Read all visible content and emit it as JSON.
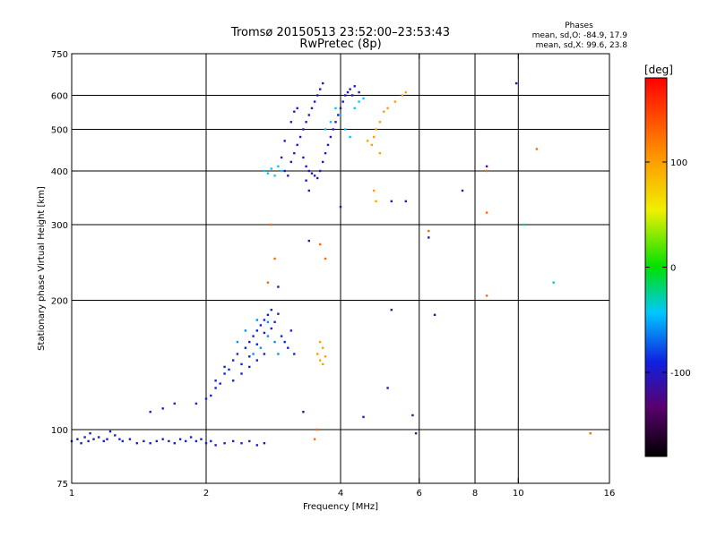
{
  "chart_data": {
    "type": "scatter",
    "title": "Tromsø 20150513 23:52:00–23:53:43",
    "subtitle": "RwPretec (8p)",
    "xlabel": "Frequency [MHz]",
    "ylabel": "Stationary phase Virtual Height [km]",
    "x_scale": "log",
    "y_scale": "log",
    "xlim": [
      1,
      16
    ],
    "ylim": [
      75,
      750
    ],
    "x_ticks": [
      1,
      2,
      4,
      6,
      8,
      10,
      16
    ],
    "x_ticklabels": [
      "1",
      "2",
      "4",
      "6",
      "8",
      "10",
      "16"
    ],
    "y_ticks": [
      75,
      100,
      200,
      300,
      400,
      500,
      600,
      750
    ],
    "y_ticklabels": [
      "75",
      "100",
      "200",
      "300",
      "400",
      "500",
      "600",
      "750"
    ],
    "x_gridlines": [
      2,
      4,
      6,
      8,
      10
    ],
    "y_gridlines": [
      100,
      200,
      300,
      400,
      500,
      600
    ],
    "grid": true,
    "phase_stats": {
      "title": "Phases",
      "line_o": "mean, sd,O:  -84.9,  17.9",
      "line_x": "mean, sd,X:   99.6,  23.8"
    },
    "colorbar": {
      "label": "[deg]",
      "range": [
        -180,
        180
      ],
      "ticks": [
        -100,
        0,
        100
      ],
      "ticklabels": [
        "-100",
        "0",
        "100"
      ],
      "colormap": "rainbow: black-purple-blue-cyan-green-yellow-orange-red"
    },
    "series": [
      {
        "phase_deg": -95,
        "points": [
          [
            1.0,
            94
          ],
          [
            1.03,
            95
          ],
          [
            1.05,
            93
          ],
          [
            1.07,
            96
          ],
          [
            1.09,
            94
          ],
          [
            1.1,
            98
          ],
          [
            1.12,
            95
          ],
          [
            1.15,
            96
          ],
          [
            1.18,
            94
          ],
          [
            1.2,
            95
          ],
          [
            1.22,
            99
          ],
          [
            1.25,
            97
          ],
          [
            1.28,
            95
          ],
          [
            1.3,
            94
          ],
          [
            1.35,
            95
          ],
          [
            1.4,
            93
          ],
          [
            1.45,
            94
          ],
          [
            1.5,
            93
          ],
          [
            1.55,
            94
          ],
          [
            1.6,
            95
          ],
          [
            1.65,
            94
          ],
          [
            1.7,
            93
          ],
          [
            1.75,
            95
          ],
          [
            1.8,
            94
          ],
          [
            1.85,
            96
          ],
          [
            1.9,
            94
          ],
          [
            1.95,
            95
          ],
          [
            2.0,
            93
          ],
          [
            2.05,
            94
          ],
          [
            2.1,
            92
          ],
          [
            2.2,
            93
          ],
          [
            2.3,
            94
          ],
          [
            2.4,
            93
          ],
          [
            2.5,
            94
          ],
          [
            2.6,
            92
          ],
          [
            2.7,
            93
          ]
        ]
      },
      {
        "phase_deg": -90,
        "points": [
          [
            1.5,
            110
          ],
          [
            1.6,
            112
          ],
          [
            1.7,
            115
          ],
          [
            1.9,
            115
          ],
          [
            2.0,
            118
          ],
          [
            2.05,
            120
          ],
          [
            2.1,
            125
          ],
          [
            2.1,
            130
          ],
          [
            2.15,
            128
          ],
          [
            2.2,
            135
          ],
          [
            2.2,
            140
          ],
          [
            2.25,
            138
          ],
          [
            2.3,
            145
          ],
          [
            2.35,
            150
          ],
          [
            2.4,
            142
          ],
          [
            2.45,
            155
          ],
          [
            2.5,
            160
          ],
          [
            2.5,
            148
          ],
          [
            2.55,
            165
          ],
          [
            2.6,
            158
          ],
          [
            2.6,
            170
          ],
          [
            2.65,
            175
          ],
          [
            2.7,
            168
          ],
          [
            2.7,
            180
          ],
          [
            2.75,
            185
          ],
          [
            2.8,
            172
          ],
          [
            2.8,
            190
          ],
          [
            2.85,
            178
          ],
          [
            2.9,
            186
          ],
          [
            2.95,
            165
          ],
          [
            3.0,
            160
          ],
          [
            3.05,
            155
          ],
          [
            3.1,
            170
          ],
          [
            3.15,
            150
          ],
          [
            2.3,
            130
          ],
          [
            2.4,
            135
          ],
          [
            2.5,
            140
          ],
          [
            2.6,
            145
          ],
          [
            2.7,
            150
          ]
        ]
      },
      {
        "phase_deg": -60,
        "points": [
          [
            2.35,
            160
          ],
          [
            2.45,
            170
          ],
          [
            2.55,
            150
          ],
          [
            2.65,
            155
          ],
          [
            2.75,
            165
          ],
          [
            2.85,
            160
          ],
          [
            2.9,
            150
          ],
          [
            2.6,
            180
          ],
          [
            2.75,
            178
          ]
        ]
      },
      {
        "phase_deg": -100,
        "points": [
          [
            3.0,
            400
          ],
          [
            3.05,
            390
          ],
          [
            3.1,
            420
          ],
          [
            3.15,
            440
          ],
          [
            3.2,
            460
          ],
          [
            3.25,
            480
          ],
          [
            3.3,
            500
          ],
          [
            3.35,
            520
          ],
          [
            3.4,
            540
          ],
          [
            3.45,
            560
          ],
          [
            3.5,
            580
          ],
          [
            3.55,
            600
          ],
          [
            3.6,
            620
          ],
          [
            3.65,
            640
          ],
          [
            3.1,
            520
          ],
          [
            3.15,
            550
          ],
          [
            3.2,
            560
          ],
          [
            3.3,
            430
          ],
          [
            3.35,
            410
          ],
          [
            3.4,
            400
          ],
          [
            3.45,
            395
          ],
          [
            3.5,
            390
          ],
          [
            3.55,
            385
          ],
          [
            3.6,
            400
          ],
          [
            3.65,
            420
          ],
          [
            3.7,
            440
          ],
          [
            3.75,
            460
          ],
          [
            3.8,
            480
          ],
          [
            3.85,
            500
          ],
          [
            3.9,
            520
          ],
          [
            3.95,
            540
          ],
          [
            4.0,
            560
          ],
          [
            4.05,
            580
          ],
          [
            4.1,
            600
          ],
          [
            4.15,
            610
          ],
          [
            4.2,
            620
          ],
          [
            4.25,
            600
          ],
          [
            4.3,
            630
          ],
          [
            4.4,
            610
          ],
          [
            3.35,
            380
          ],
          [
            3.4,
            360
          ],
          [
            3.0,
            470
          ],
          [
            2.95,
            430
          ]
        ]
      },
      {
        "phase_deg": -45,
        "points": [
          [
            2.7,
            400
          ],
          [
            2.75,
            395
          ],
          [
            2.8,
            405
          ],
          [
            2.85,
            390
          ],
          [
            2.9,
            410
          ],
          [
            2.95,
            400
          ],
          [
            3.7,
            500
          ],
          [
            3.8,
            520
          ],
          [
            3.9,
            560
          ],
          [
            4.0,
            540
          ],
          [
            4.1,
            500
          ],
          [
            4.2,
            480
          ],
          [
            4.3,
            560
          ],
          [
            4.4,
            580
          ],
          [
            4.5,
            590
          ]
        ]
      },
      {
        "phase_deg": 100,
        "points": [
          [
            4.6,
            470
          ],
          [
            4.7,
            460
          ],
          [
            4.75,
            480
          ],
          [
            4.8,
            500
          ],
          [
            4.9,
            520
          ],
          [
            4.9,
            440
          ],
          [
            4.75,
            360
          ],
          [
            4.8,
            340
          ],
          [
            5.0,
            550
          ],
          [
            5.1,
            560
          ],
          [
            5.3,
            580
          ],
          [
            5.5,
            600
          ],
          [
            5.6,
            610
          ],
          [
            3.55,
            150
          ],
          [
            3.6,
            145
          ],
          [
            3.65,
            155
          ],
          [
            3.7,
            148
          ],
          [
            3.6,
            160
          ],
          [
            3.65,
            142
          ]
        ]
      },
      {
        "phase_deg": 130,
        "points": [
          [
            2.8,
            300
          ],
          [
            2.85,
            250
          ],
          [
            2.75,
            220
          ],
          [
            3.6,
            270
          ],
          [
            3.7,
            250
          ],
          [
            8.5,
            400
          ],
          [
            8.5,
            320
          ],
          [
            8.5,
            205
          ],
          [
            11.0,
            450
          ],
          [
            6.3,
            290
          ],
          [
            3.55,
            100
          ],
          [
            3.5,
            95
          ],
          [
            14.5,
            98
          ]
        ]
      },
      {
        "phase_deg": -110,
        "points": [
          [
            6.3,
            280
          ],
          [
            6.5,
            185
          ],
          [
            7.5,
            360
          ],
          [
            8.5,
            410
          ],
          [
            9.9,
            640
          ],
          [
            5.2,
            190
          ],
          [
            5.1,
            125
          ],
          [
            5.2,
            340
          ],
          [
            5.6,
            340
          ],
          [
            5.8,
            108
          ],
          [
            5.9,
            98
          ],
          [
            2.9,
            215
          ],
          [
            3.4,
            275
          ],
          [
            3.3,
            110
          ],
          [
            4.5,
            107
          ],
          [
            4.0,
            330
          ]
        ]
      },
      {
        "phase_deg": -30,
        "points": [
          [
            10.3,
            300
          ],
          [
            12.0,
            220
          ]
        ]
      }
    ]
  }
}
